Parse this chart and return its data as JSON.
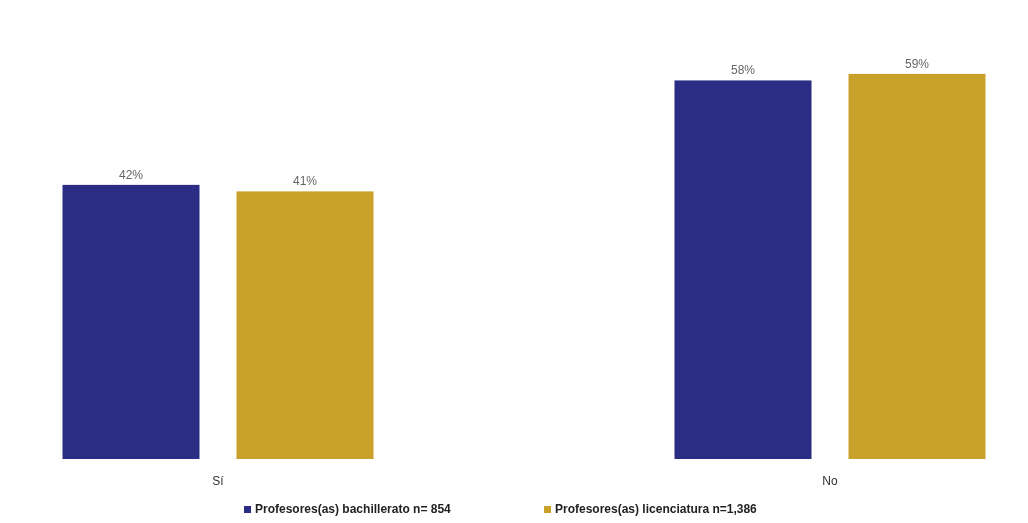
{
  "chart_data": {
    "type": "bar",
    "categories": [
      "Sí",
      "No"
    ],
    "series": [
      {
        "name": "Profesores(as) bachillerato n= 854",
        "color": "#2b2d84",
        "values": [
          42,
          58
        ],
        "value_labels": [
          "42%",
          "58%"
        ]
      },
      {
        "name": "Profesores(as) licenciatura n=1,386",
        "color": "#c9a02a",
        "values": [
          41,
          59
        ],
        "value_labels": [
          "41%",
          "59%"
        ]
      }
    ],
    "legend": "bottom"
  }
}
